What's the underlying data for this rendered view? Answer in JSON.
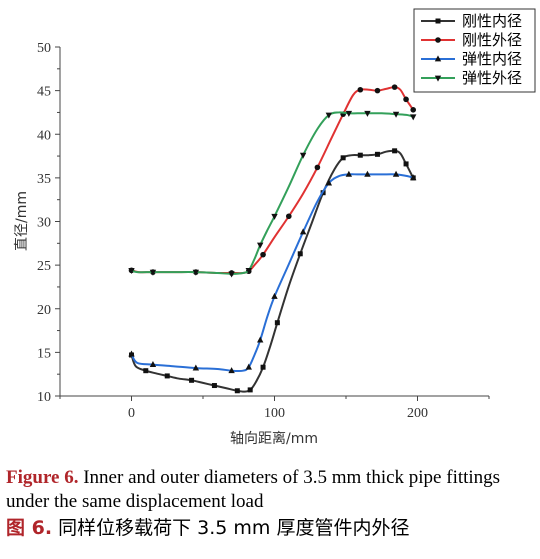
{
  "chart_data": {
    "type": "line",
    "xlabel": "轴向距离/mm",
    "ylabel": "直径/mm",
    "xlim": [
      -50,
      250
    ],
    "ylim": [
      10,
      50
    ],
    "x_ticks": [
      "0",
      "100",
      "200"
    ],
    "y_ticks": [
      "10",
      "15",
      "20",
      "25",
      "30",
      "35",
      "40",
      "45",
      "50"
    ],
    "legend_position": "top-right",
    "series": [
      {
        "name": "刚性内径",
        "color": "#333333",
        "marker": "square",
        "x": [
          0,
          3,
          10,
          17,
          25,
          33,
          42,
          50,
          58,
          66,
          74,
          79,
          83,
          87,
          92,
          97,
          102,
          110,
          118,
          126,
          134,
          142,
          148,
          154,
          160,
          166,
          172,
          178,
          184,
          188,
          192,
          197
        ],
        "y": [
          14.7,
          13.4,
          12.9,
          12.6,
          12.3,
          12.0,
          11.8,
          11.5,
          11.2,
          10.9,
          10.6,
          10.5,
          10.7,
          11.6,
          13.3,
          15.7,
          18.4,
          22.6,
          26.3,
          29.8,
          33.3,
          36.0,
          37.3,
          37.6,
          37.6,
          37.6,
          37.7,
          38.0,
          38.1,
          37.8,
          36.6,
          35.0
        ]
      },
      {
        "name": "刚性外径",
        "color": "#e03232",
        "marker": "circle",
        "x": [
          0,
          5,
          15,
          30,
          45,
          60,
          70,
          78,
          82,
          86,
          92,
          100,
          110,
          120,
          130,
          140,
          148,
          155,
          160,
          166,
          172,
          178,
          184,
          188,
          192,
          197
        ],
        "y": [
          24.4,
          24.2,
          24.2,
          24.2,
          24.2,
          24.1,
          24.1,
          24.1,
          24.3,
          25.0,
          26.2,
          28.2,
          30.6,
          33.2,
          36.2,
          39.6,
          42.3,
          44.5,
          45.1,
          45.1,
          45.0,
          45.2,
          45.4,
          45.1,
          44.0,
          42.8
        ]
      },
      {
        "name": "弹性内径",
        "color": "#2a6fd6",
        "marker": "triangle-up",
        "x": [
          0,
          4,
          15,
          30,
          45,
          60,
          70,
          78,
          82,
          86,
          90,
          95,
          100,
          110,
          120,
          130,
          138,
          145,
          152,
          158,
          165,
          175,
          185,
          193,
          197
        ],
        "y": [
          14.8,
          13.8,
          13.6,
          13.4,
          13.2,
          13.1,
          12.9,
          12.9,
          13.3,
          14.7,
          16.4,
          19.1,
          21.4,
          25.1,
          28.8,
          32.3,
          34.4,
          35.2,
          35.4,
          35.4,
          35.4,
          35.4,
          35.4,
          35.2,
          35.0
        ]
      },
      {
        "name": "弹性外径",
        "color": "#33a05a",
        "marker": "triangle-down",
        "x": [
          0,
          4,
          15,
          30,
          45,
          60,
          70,
          78,
          82,
          86,
          90,
          95,
          100,
          110,
          120,
          130,
          138,
          145,
          152,
          158,
          165,
          175,
          185,
          193,
          197
        ],
        "y": [
          24.4,
          24.2,
          24.2,
          24.2,
          24.2,
          24.1,
          24.0,
          24.1,
          24.4,
          25.7,
          27.3,
          29.0,
          30.6,
          34.0,
          37.6,
          40.6,
          42.2,
          42.5,
          42.4,
          42.4,
          42.4,
          42.4,
          42.3,
          42.2,
          42.0
        ]
      }
    ]
  },
  "caption": {
    "en_label": "Figure 6.",
    "en_text": "Inner and outer diameters of 3.5 mm thick pipe fittings under the same displacement load",
    "cn_label": "图 6.",
    "cn_text": "同样位移载荷下 3.5 mm 厚度管件内外径"
  }
}
